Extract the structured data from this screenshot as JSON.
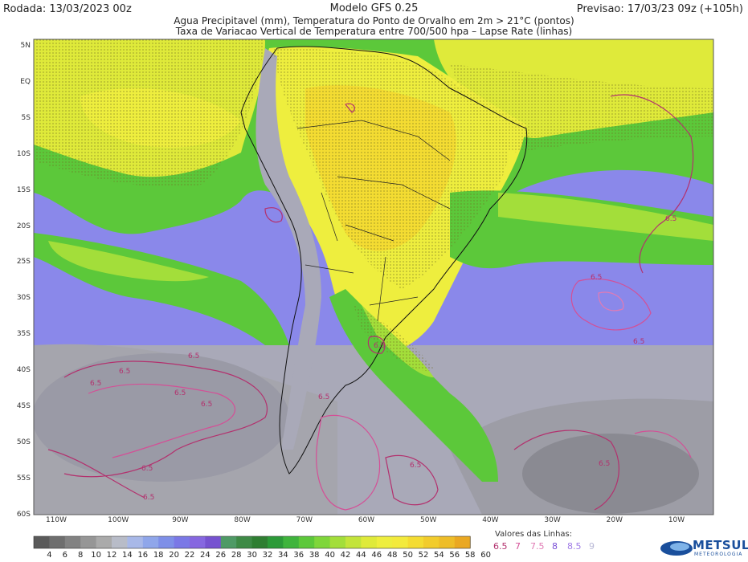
{
  "header": {
    "run": "Rodada: 13/03/2023 00z",
    "model": "Modelo GFS 0.25",
    "forecast": "Previsao: 17/03/23 09z (+105h)",
    "subtitle1": "Agua Precipitavel (mm), Temperatura do Ponto de Orvalho em 2m > 21°C (pontos)",
    "subtitle2": "Taxa de Variacao Vertical de Temperatura entre 700/500 hpa – Lapse Rate (linhas)"
  },
  "lat_labels": [
    "5N",
    "EQ",
    "5S",
    "10S",
    "15S",
    "20S",
    "25S",
    "30S",
    "35S",
    "40S",
    "45S",
    "50S",
    "55S",
    "60S"
  ],
  "lon_labels": [
    "110W",
    "100W",
    "90W",
    "80W",
    "70W",
    "60W",
    "50W",
    "40W",
    "30W",
    "20W",
    "10W"
  ],
  "colorbar": {
    "labels": [
      "4",
      "6",
      "8",
      "10",
      "12",
      "14",
      "16",
      "18",
      "20",
      "22",
      "24",
      "26",
      "28",
      "30",
      "32",
      "34",
      "36",
      "38",
      "40",
      "42",
      "44",
      "46",
      "48",
      "50",
      "52",
      "54",
      "56",
      "58",
      "60"
    ],
    "colors": [
      "#5a5a5a",
      "#6e6e6e",
      "#828282",
      "#969696",
      "#aaaaaa",
      "#b8bcc8",
      "#a8b8e8",
      "#8fa6ea",
      "#7e8fe8",
      "#7a78e6",
      "#8667e0",
      "#7652d0",
      "#4f9a66",
      "#3e8a46",
      "#2f7e32",
      "#2c9a38",
      "#3fb43c",
      "#5cc83a",
      "#7fd63a",
      "#a3de3a",
      "#c3e43a",
      "#dfea3a",
      "#eeee3e",
      "#f3ea3c",
      "#f4dc32",
      "#f2cc2c",
      "#eebd28",
      "#eaa822"
    ]
  },
  "line_values": {
    "title": "Valores das Linhas:",
    "items": [
      {
        "label": "6.5",
        "color": "#b3316e"
      },
      {
        "label": "7",
        "color": "#d44f96"
      },
      {
        "label": "7.5",
        "color": "#e07bb4"
      },
      {
        "label": "8",
        "color": "#7a4fd6"
      },
      {
        "label": "8.5",
        "color": "#a07be6"
      },
      {
        "label": "9",
        "color": "#b8b8d6"
      }
    ]
  },
  "contour_labels": [
    "6.5",
    "6.5",
    "6.5",
    "6.5",
    "6.5",
    "6.5",
    "6.5",
    "6.5",
    "6.5",
    "6.5",
    "6.5",
    "6.5",
    "6.5",
    "6.5"
  ],
  "brand": {
    "name": "METSUL",
    "sub": "METEOROLOGIA"
  }
}
